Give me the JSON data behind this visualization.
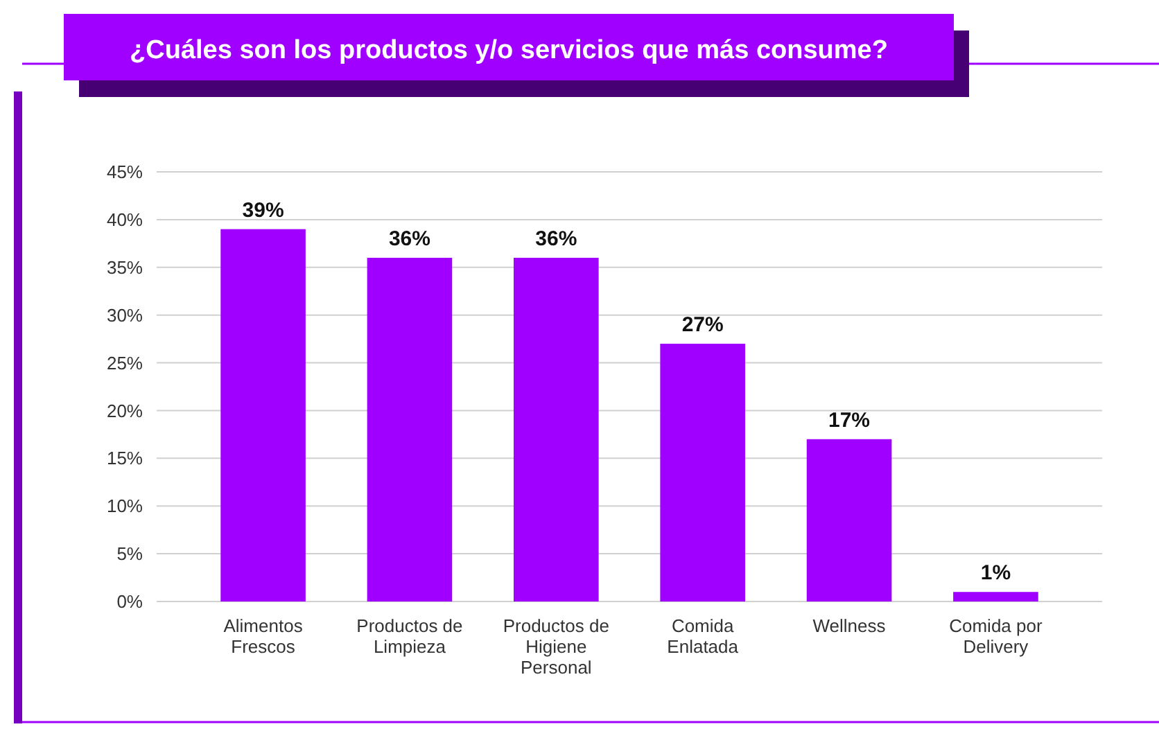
{
  "chart_data": {
    "type": "bar",
    "title": "¿Cuáles son los productos y/o servicios que más consume?",
    "categories": [
      "Alimentos Frescos",
      "Productos de Limpieza",
      "Productos de Higiene Personal",
      "Comida Enlatada",
      "Wellness",
      "Comida por Delivery"
    ],
    "values": [
      39,
      36,
      36,
      27,
      17,
      1
    ],
    "color": "#a000ff",
    "ylim": [
      0,
      45
    ],
    "yticks": [
      {
        "value": 0,
        "label": "0%"
      },
      {
        "value": 5,
        "label": "5%"
      },
      {
        "value": 10,
        "label": "10%"
      },
      {
        "value": 15,
        "label": "15%"
      },
      {
        "value": 20,
        "label": "20%"
      },
      {
        "value": 25,
        "label": "25%"
      },
      {
        "value": 30,
        "label": "30%"
      },
      {
        "value": 35,
        "label": "35%"
      },
      {
        "value": 40,
        "label": "40%"
      },
      {
        "value": 45,
        "label": "45%"
      }
    ],
    "value_labels": [
      "39%",
      "36%",
      "36%",
      "27%",
      "17%",
      "1%"
    ],
    "grid": "y"
  }
}
